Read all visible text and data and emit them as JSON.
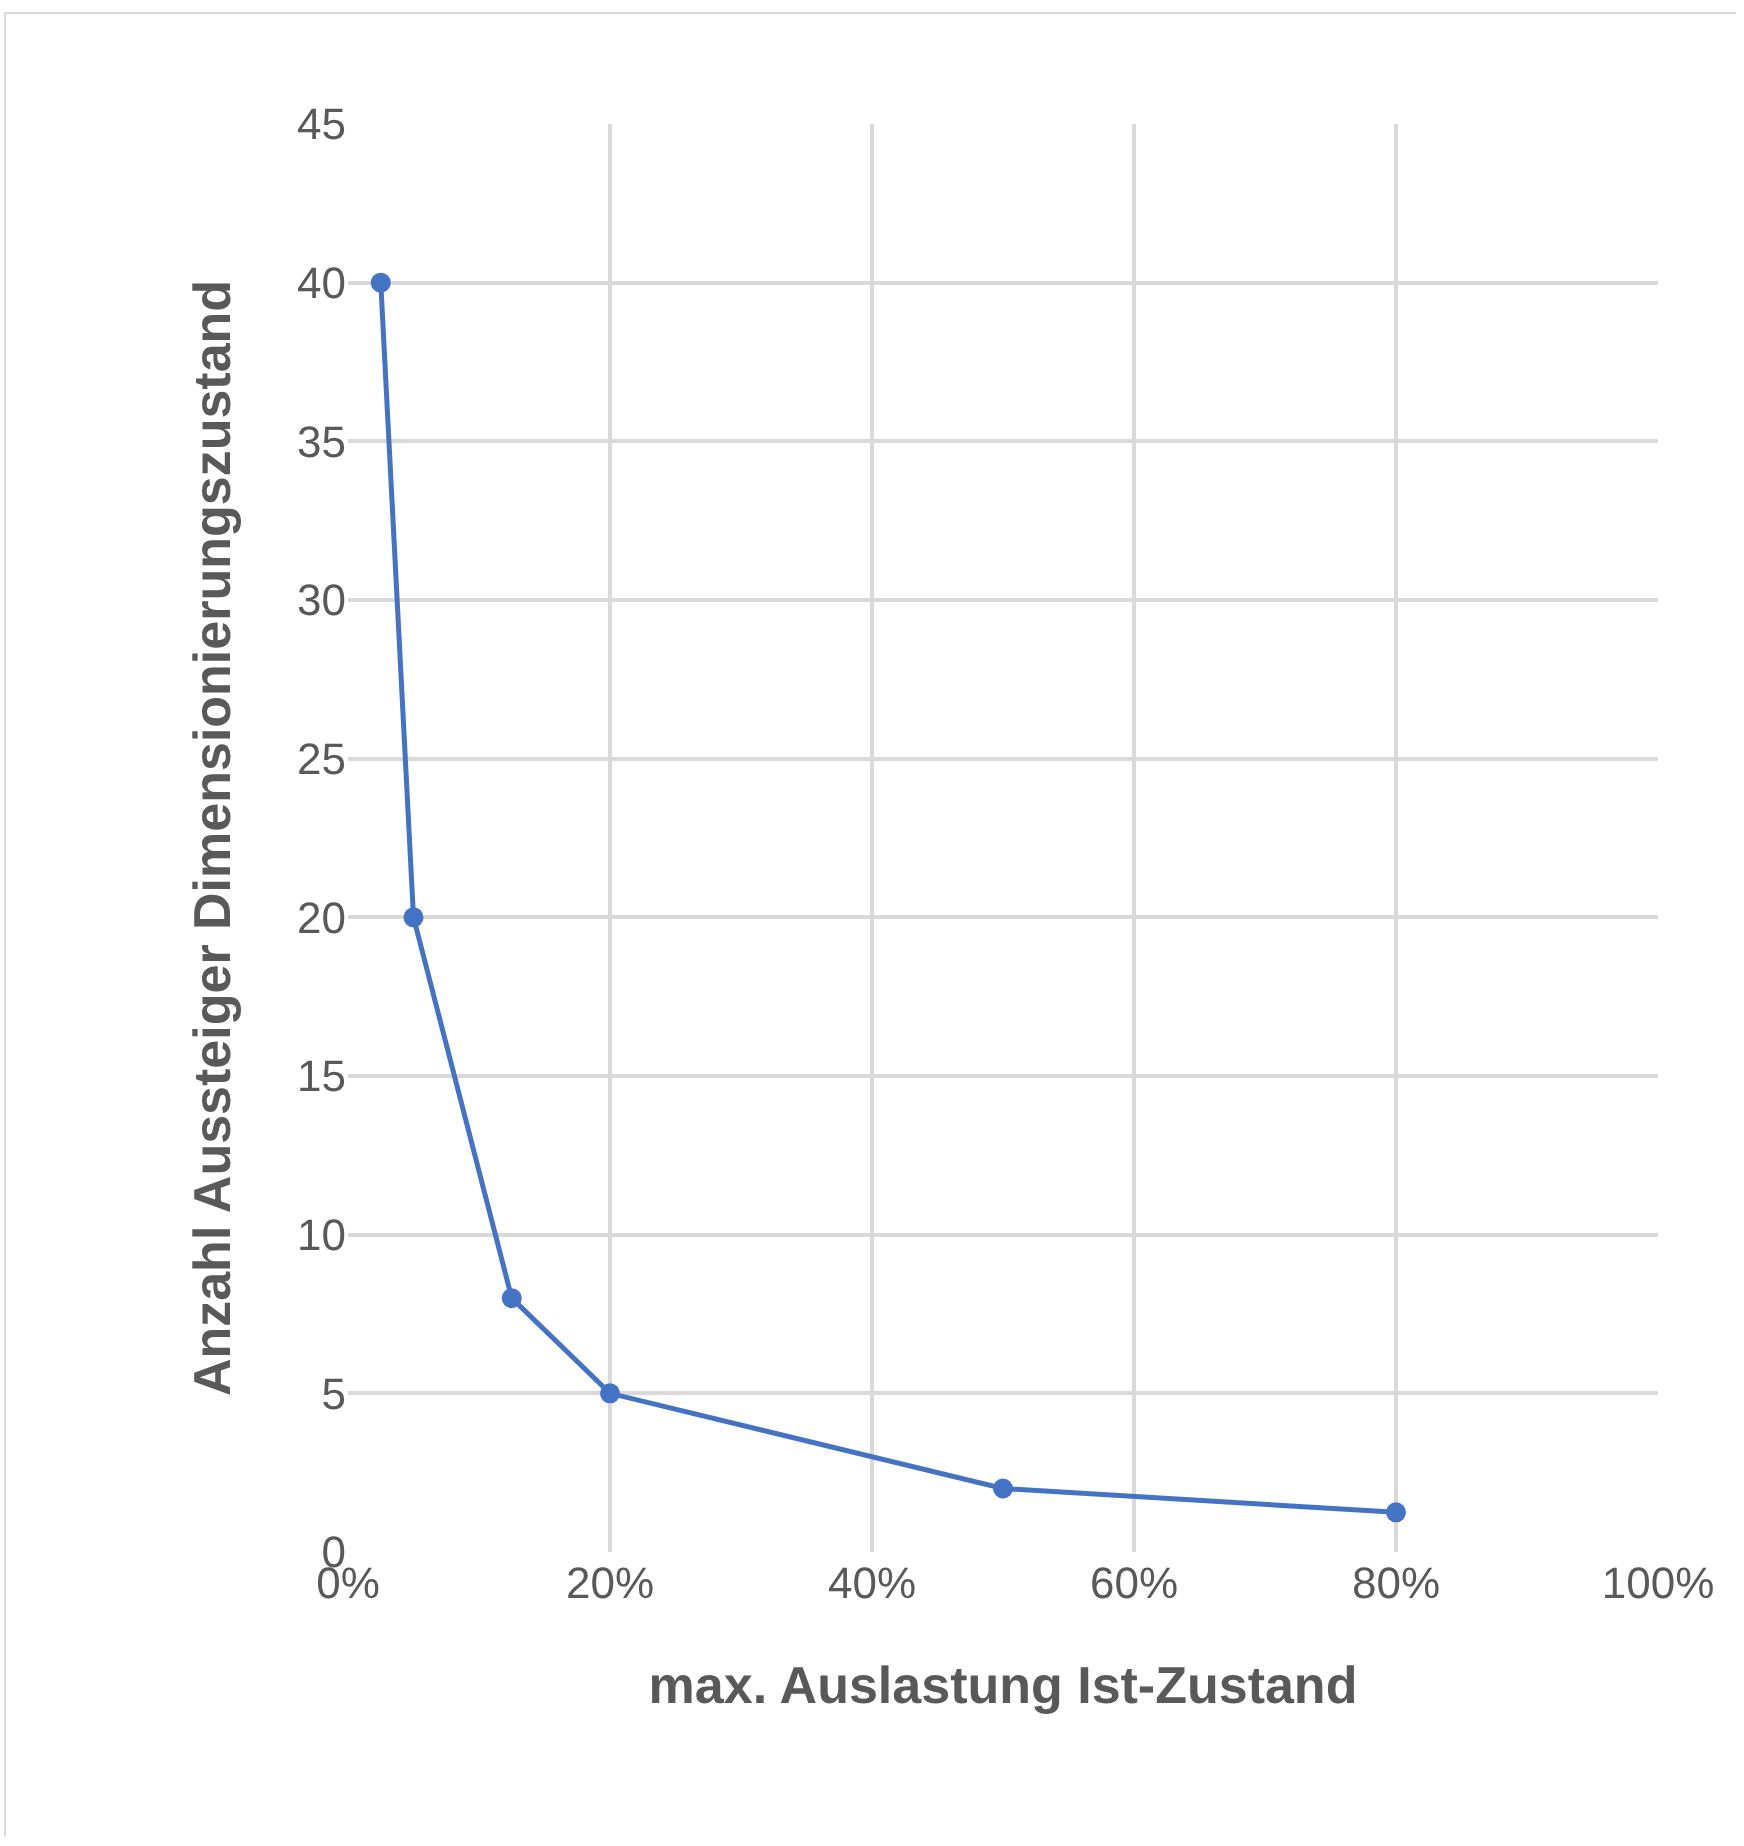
{
  "chart_data": {
    "type": "line",
    "xlabel": "max. Auslastung Ist-Zustand",
    "ylabel": "Anzahl Aussteiger Dimensionierungszustand",
    "x": [
      2.5,
      5,
      12.5,
      20,
      50,
      80
    ],
    "series": [
      {
        "color": "#4472c4",
        "values": [
          40,
          20,
          8,
          5,
          2,
          1.25
        ]
      }
    ],
    "xlim": [
      0,
      100
    ],
    "xticks": [
      {
        "value": 0,
        "label": "0%"
      },
      {
        "value": 20,
        "label": "20%"
      },
      {
        "value": 40,
        "label": "40%"
      },
      {
        "value": 60,
        "label": "60%"
      },
      {
        "value": 80,
        "label": "80%"
      },
      {
        "value": 100,
        "label": "100%"
      }
    ],
    "ylim": [
      0,
      45
    ],
    "yticks": [
      0,
      5,
      10,
      15,
      20,
      25,
      30,
      35,
      40,
      45
    ],
    "grid": true,
    "marker": "circle",
    "line_style": "solid"
  }
}
